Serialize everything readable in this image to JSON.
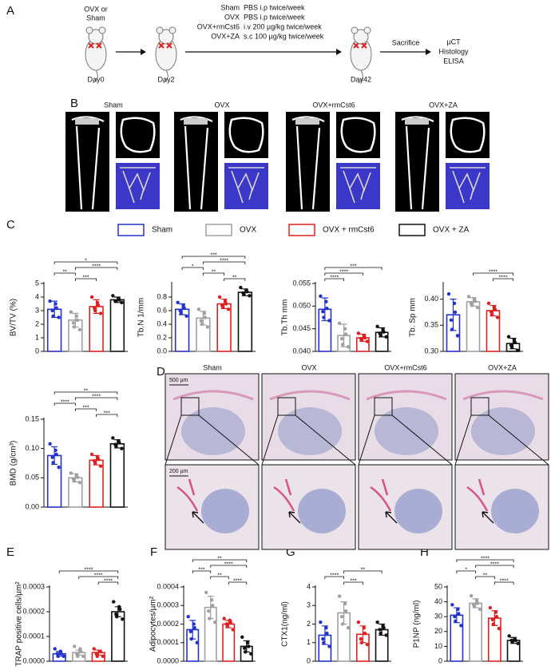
{
  "panel_labels": [
    "A",
    "B",
    "C",
    "D",
    "E",
    "F",
    "G",
    "H"
  ],
  "panel_a": {
    "start": [
      "OVX or",
      "Sham"
    ],
    "days": [
      "Day0",
      "Day2",
      "Day42"
    ],
    "treatments": [
      [
        "Sham",
        "PBS i.p twice/week"
      ],
      [
        "OVX",
        "PBS i.p twice/week"
      ],
      [
        "OVX+rmCst6",
        "i.v 200 µg/kg twice/week"
      ],
      [
        "OVX+ZA",
        "s.c 100 µg/kg twice/week"
      ]
    ],
    "endpoint": "Sacrifice",
    "assays": [
      "µCT",
      "Histology",
      "ELISA"
    ]
  },
  "panel_b": {
    "groups": [
      "Sham",
      "OVX",
      "OVX+rmCst6",
      "OVX+ZA"
    ]
  },
  "panel_d": {
    "groups": [
      "Sham",
      "OVX",
      "OVX+rmCst6",
      "OVX+ZA"
    ],
    "scale_bars": [
      "500 µm",
      "200 µm"
    ]
  },
  "legend": {
    "names": [
      "Sham",
      "OVX",
      "OVX + rmCst6",
      "OVX + ZA"
    ],
    "colors": [
      "#2233cc",
      "#a0a0a0",
      "#e02020",
      "#111111"
    ]
  },
  "chart_data": [
    {
      "type": "bar",
      "ylabel": "BV/TV (%)",
      "ylim": [
        0,
        5
      ],
      "yticks": [
        0,
        1,
        2,
        3,
        4,
        5
      ],
      "categories": [
        null,
        null,
        null,
        null
      ],
      "values": [
        3.1,
        2.3,
        3.3,
        3.8
      ],
      "errors": [
        0.6,
        0.5,
        0.5,
        0.2
      ],
      "points": [
        [
          3.7,
          3.5,
          3.2,
          3.0,
          2.6,
          2.5
        ],
        [
          2.9,
          2.6,
          2.3,
          2.1,
          1.8,
          1.6
        ],
        [
          4.0,
          3.6,
          3.4,
          3.2,
          3.0,
          2.8
        ],
        [
          4.1,
          3.9,
          3.8,
          3.7,
          3.7,
          3.6
        ]
      ],
      "significance": [
        {
          "from": "Sham",
          "to": "OVX + ZA",
          "label": "*"
        },
        {
          "from": "OVX",
          "to": "OVX + ZA",
          "label": "****"
        },
        {
          "from": "Sham",
          "to": "OVX",
          "label": "**"
        },
        {
          "from": "OVX",
          "to": "OVX + rmCst6",
          "label": "***"
        }
      ]
    },
    {
      "type": "bar",
      "ylabel": "Tb.N 1/mm",
      "ylim": [
        0,
        1.0
      ],
      "yticks": [
        {
          "value": 0,
          "label": "0.0"
        },
        0.2,
        0.4,
        0.6,
        0.8
      ],
      "categories": [
        null,
        null,
        null,
        null
      ],
      "values": [
        0.62,
        0.49,
        0.7,
        0.87
      ],
      "errors": [
        0.08,
        0.1,
        0.07,
        0.05
      ],
      "points": [
        [
          0.72,
          0.68,
          0.64,
          0.6,
          0.56,
          0.52
        ],
        [
          0.62,
          0.56,
          0.5,
          0.45,
          0.4,
          0.36
        ],
        [
          0.8,
          0.74,
          0.7,
          0.68,
          0.65,
          0.62
        ],
        [
          0.94,
          0.9,
          0.88,
          0.86,
          0.84,
          0.82
        ]
      ],
      "significance": [
        {
          "from": "Sham",
          "to": "OVX + ZA",
          "label": "***"
        },
        {
          "from": "OVX",
          "to": "OVX + ZA",
          "label": "****"
        },
        {
          "from": "Sham",
          "to": "OVX",
          "label": "*"
        },
        {
          "from": "OVX",
          "to": "OVX + rmCst6",
          "label": "**"
        },
        {
          "from": "OVX + rmCst6",
          "to": "OVX + ZA",
          "label": "**"
        }
      ]
    },
    {
      "type": "bar",
      "ylabel": "Tb.Th mm",
      "ylim": [
        0.04,
        0.055
      ],
      "yticks": [
        {
          "value": 0.04,
          "label": "0.040"
        },
        0.045,
        {
          "value": 0.05,
          "label": "0.050"
        },
        0.055
      ],
      "categories": [
        null,
        null,
        null,
        null
      ],
      "values": [
        0.0493,
        0.0435,
        0.043,
        0.0442
      ],
      "errors": [
        0.0025,
        0.0025,
        0.0008,
        0.001
      ],
      "points": [
        [
          0.0522,
          0.051,
          0.0495,
          0.0488,
          0.0475,
          0.0468
        ],
        [
          0.0462,
          0.045,
          0.0438,
          0.0428,
          0.0415,
          0.041
        ],
        [
          0.044,
          0.0435,
          0.043,
          0.0428,
          0.0425,
          0.0422
        ],
        [
          0.0455,
          0.0448,
          0.0443,
          0.044,
          0.0436,
          0.0432
        ]
      ],
      "significance": [
        {
          "from": "Sham",
          "to": "OVX + ZA",
          "label": "***"
        },
        {
          "from": "Sham",
          "to": "OVX + rmCst6",
          "label": "****"
        },
        {
          "from": "Sham",
          "to": "OVX",
          "label": "****"
        }
      ]
    },
    {
      "type": "bar",
      "ylabel": "Tb. Sp mm",
      "ylim": [
        0.3,
        0.43
      ],
      "yticks": [
        {
          "value": 0.3,
          "label": "0.30"
        },
        0.35,
        {
          "value": 0.4,
          "label": "0.40"
        }
      ],
      "categories": [
        null,
        null,
        null,
        null
      ],
      "values": [
        0.37,
        0.395,
        0.378,
        0.315
      ],
      "errors": [
        0.03,
        0.008,
        0.01,
        0.01
      ],
      "points": [
        [
          0.41,
          0.392,
          0.375,
          0.36,
          0.342,
          0.33
        ],
        [
          0.405,
          0.4,
          0.396,
          0.392,
          0.388,
          0.384
        ],
        [
          0.392,
          0.385,
          0.38,
          0.376,
          0.37,
          0.365
        ],
        [
          0.328,
          0.322,
          0.317,
          0.312,
          0.308,
          0.302
        ]
      ],
      "significance": [
        {
          "from": "OVX",
          "to": "OVX + ZA",
          "label": "****"
        },
        {
          "from": "OVX + rmCst6",
          "to": "OVX + ZA",
          "label": "****"
        }
      ]
    },
    {
      "type": "bar",
      "ylabel": "BMD (g/cm³)",
      "ylim": [
        0,
        0.15
      ],
      "yticks": [
        {
          "value": 0,
          "label": "0.00"
        },
        0.05,
        {
          "value": 0.1,
          "label": "0.10"
        },
        0.15
      ],
      "categories": [
        null,
        null,
        null,
        null
      ],
      "values": [
        0.088,
        0.05,
        0.08,
        0.108
      ],
      "errors": [
        0.015,
        0.007,
        0.008,
        0.007
      ],
      "points": [
        [
          0.108,
          0.097,
          0.09,
          0.085,
          0.076,
          0.068
        ],
        [
          0.058,
          0.054,
          0.051,
          0.048,
          0.045,
          0.042
        ],
        [
          0.09,
          0.085,
          0.082,
          0.079,
          0.075,
          0.07
        ],
        [
          0.118,
          0.113,
          0.11,
          0.107,
          0.104,
          0.1
        ]
      ],
      "significance": [
        {
          "from": "Sham",
          "to": "OVX + ZA",
          "label": "**"
        },
        {
          "from": "OVX",
          "to": "OVX + ZA",
          "label": "****"
        },
        {
          "from": "Sham",
          "to": "OVX",
          "label": "****"
        },
        {
          "from": "OVX",
          "to": "OVX + rmCst6",
          "label": "***"
        },
        {
          "from": "OVX + rmCst6",
          "to": "OVX + ZA",
          "label": "***"
        }
      ]
    },
    {
      "type": "bar",
      "ylabel": "TRAP positive cells/µm²",
      "ylim": [
        0,
        0.0003
      ],
      "yticks": [
        {
          "value": 0,
          "label": "0.0000"
        },
        0.0001,
        0.0002,
        0.0003
      ],
      "categories": [
        null,
        null,
        null,
        null
      ],
      "values": [
        3e-05,
        3.5e-05,
        3.5e-05,
        0.0002
      ],
      "errors": [
        1e-05,
        1e-05,
        1e-05,
        2e-05
      ],
      "points": [
        [
          5e-05,
          4e-05,
          3e-05,
          3e-05,
          2e-05,
          2e-05
        ],
        [
          6e-05,
          5e-05,
          4e-05,
          3e-05,
          2e-05,
          2e-05
        ],
        [
          5e-05,
          4e-05,
          4e-05,
          3e-05,
          2e-05,
          2e-05
        ],
        [
          0.00024,
          0.00022,
          0.00021,
          0.00019,
          0.00018,
          0.00017
        ]
      ],
      "significance": [
        {
          "from": "Sham",
          "to": "OVX + ZA",
          "label": "****"
        },
        {
          "from": "OVX",
          "to": "OVX + ZA",
          "label": "****"
        },
        {
          "from": "OVX + rmCst6",
          "to": "OVX + ZA",
          "label": "****"
        }
      ]
    },
    {
      "type": "bar",
      "ylabel": "Adipocytes/µm²",
      "ylim": [
        0,
        0.0004
      ],
      "yticks": [
        {
          "value": 0,
          "label": "0.0000"
        },
        0.0001,
        0.0002,
        0.0003,
        0.0004
      ],
      "categories": [
        null,
        null,
        null,
        null
      ],
      "values": [
        0.00017,
        0.00029,
        0.0002,
        8e-05
      ],
      "errors": [
        5e-05,
        6e-05,
        2e-05,
        3e-05
      ],
      "points": [
        [
          0.00024,
          0.0002,
          0.00018,
          0.00016,
          0.00012,
          0.0001
        ],
        [
          0.00037,
          0.00033,
          0.0003,
          0.00027,
          0.00023,
          0.00021
        ],
        [
          0.00023,
          0.00022,
          0.00021,
          0.0002,
          0.00019,
          0.00017
        ],
        [
          0.00013,
          0.0001,
          8e-05,
          7e-05,
          5e-05,
          4e-05
        ]
      ],
      "significance": [
        {
          "from": "Sham",
          "to": "OVX + ZA",
          "label": "**"
        },
        {
          "from": "OVX",
          "to": "OVX + ZA",
          "label": "****"
        },
        {
          "from": "Sham",
          "to": "OVX",
          "label": "***"
        },
        {
          "from": "OVX",
          "to": "OVX + rmCst6",
          "label": "**"
        },
        {
          "from": "OVX + rmCst6",
          "to": "OVX + ZA",
          "label": "****"
        }
      ]
    },
    {
      "type": "bar",
      "ylabel": "CTX1(ng/ml)",
      "ylim": [
        0,
        4
      ],
      "yticks": [
        0,
        1,
        2,
        3,
        4
      ],
      "categories": [
        null,
        null,
        null,
        null
      ],
      "values": [
        1.4,
        2.6,
        1.45,
        1.7
      ],
      "errors": [
        0.5,
        0.6,
        0.45,
        0.3
      ],
      "points": [
        [
          2.1,
          1.8,
          1.5,
          1.2,
          1.0,
          0.8
        ],
        [
          3.5,
          3.1,
          2.7,
          2.4,
          2.0,
          1.8
        ],
        [
          2.1,
          1.8,
          1.5,
          1.2,
          1.0,
          0.9
        ],
        [
          2.1,
          1.9,
          1.8,
          1.7,
          1.5,
          1.4
        ]
      ],
      "significance": [
        {
          "from": "OVX",
          "to": "OVX + ZA",
          "label": "**"
        },
        {
          "from": "Sham",
          "to": "OVX",
          "label": "****"
        },
        {
          "from": "OVX",
          "to": "OVX + rmCst6",
          "label": "***"
        }
      ]
    },
    {
      "type": "bar",
      "ylabel": "P1NP (ng/ml)",
      "ylim": [
        0,
        50
      ],
      "yticks": [
        0,
        10,
        20,
        30,
        40,
        50
      ],
      "categories": [
        null,
        null,
        null,
        null
      ],
      "values": [
        31,
        39,
        29,
        14
      ],
      "errors": [
        5,
        3,
        5,
        2
      ],
      "points": [
        [
          38,
          35,
          32,
          30,
          27,
          24
        ],
        [
          44,
          41,
          39,
          38,
          37,
          35
        ],
        [
          36,
          33,
          30,
          28,
          25,
          22
        ],
        [
          17,
          15,
          14,
          14,
          13,
          12
        ]
      ],
      "significance": [
        {
          "from": "Sham",
          "to": "OVX + ZA",
          "label": "****"
        },
        {
          "from": "OVX",
          "to": "OVX + ZA",
          "label": "****"
        },
        {
          "from": "Sham",
          "to": "OVX",
          "label": "*"
        },
        {
          "from": "OVX",
          "to": "OVX + rmCst6",
          "label": "**"
        },
        {
          "from": "OVX + rmCst6",
          "to": "OVX + ZA",
          "label": "****"
        }
      ]
    }
  ]
}
